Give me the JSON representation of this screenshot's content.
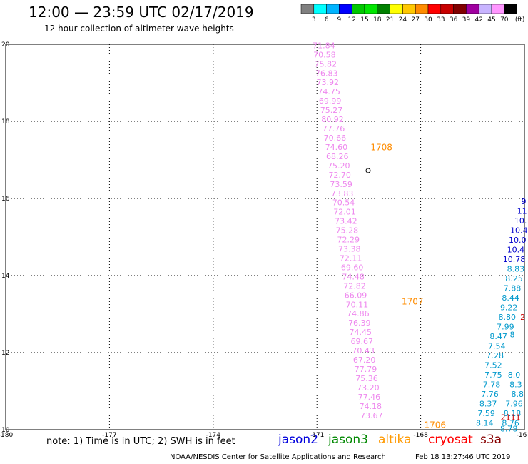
{
  "header": {
    "title": "12:00 — 23:59 UTC 02/17/2019",
    "subtitle": "12 hour collection of altimeter wave heights"
  },
  "legend": {
    "unit": "(ft)",
    "bins": [
      {
        "label": "3",
        "color": "#808080"
      },
      {
        "label": "6",
        "color": "#00ffff"
      },
      {
        "label": "9",
        "color": "#00b4ff"
      },
      {
        "label": "12",
        "color": "#0000ff"
      },
      {
        "label": "15",
        "color": "#00c800"
      },
      {
        "label": "18",
        "color": "#00e600"
      },
      {
        "label": "21",
        "color": "#008000"
      },
      {
        "label": "24",
        "color": "#ffff00"
      },
      {
        "label": "27",
        "color": "#ffc800"
      },
      {
        "label": "30",
        "color": "#ff8c00"
      },
      {
        "label": "33",
        "color": "#ff0000"
      },
      {
        "label": "36",
        "color": "#c80000"
      },
      {
        "label": "39",
        "color": "#800000"
      },
      {
        "label": "42",
        "color": "#a000a0"
      },
      {
        "label": "45",
        "color": "#c8b4ff"
      },
      {
        "label": "70",
        "color": "#ff96ff"
      },
      {
        "label": "",
        "color": "#000000"
      }
    ]
  },
  "map": {
    "lon_range": [
      -180,
      -165
    ],
    "lat_range": [
      10,
      20
    ],
    "lon_ticks": [
      "-180",
      "-177",
      "-174",
      "-171",
      "-168",
      "-16"
    ],
    "lat_ticks": [
      "20",
      "18",
      "16",
      "14",
      "12",
      "10"
    ]
  },
  "tracks": [
    {
      "satellite": "altika",
      "color": "#ee88ee",
      "points": [
        {
          "lon": -170.8,
          "lat": 19.9,
          "label": "71.84"
        },
        {
          "lon": -170.78,
          "lat": 19.66,
          "label": "70.58"
        },
        {
          "lon": -170.75,
          "lat": 19.42,
          "label": "75.82"
        },
        {
          "lon": -170.72,
          "lat": 19.18,
          "label": "76.83"
        },
        {
          "lon": -170.69,
          "lat": 18.94,
          "label": "73.92"
        },
        {
          "lon": -170.65,
          "lat": 18.7,
          "label": "74.75"
        },
        {
          "lon": -170.62,
          "lat": 18.46,
          "label": "69.99"
        },
        {
          "lon": -170.58,
          "lat": 18.22,
          "label": "75.27"
        },
        {
          "lon": -170.55,
          "lat": 17.98,
          "label": "80.92"
        },
        {
          "lon": -170.52,
          "lat": 17.74,
          "label": "77.76"
        },
        {
          "lon": -170.48,
          "lat": 17.5,
          "label": "70.66"
        },
        {
          "lon": -170.44,
          "lat": 17.26,
          "label": "74.60"
        },
        {
          "lon": -170.41,
          "lat": 17.02,
          "label": "68.26"
        },
        {
          "lon": -170.37,
          "lat": 16.78,
          "label": "75.20"
        },
        {
          "lon": -170.34,
          "lat": 16.54,
          "label": "72.70"
        },
        {
          "lon": -170.3,
          "lat": 16.3,
          "label": "73.59"
        },
        {
          "lon": -170.27,
          "lat": 16.06,
          "label": "73.83"
        },
        {
          "lon": -170.23,
          "lat": 15.82,
          "label": "70.54"
        },
        {
          "lon": -170.2,
          "lat": 15.58,
          "label": "72.01"
        },
        {
          "lon": -170.16,
          "lat": 15.34,
          "label": "73.42"
        },
        {
          "lon": -170.13,
          "lat": 15.1,
          "label": "75.28"
        },
        {
          "lon": -170.09,
          "lat": 14.86,
          "label": "72.29"
        },
        {
          "lon": -170.06,
          "lat": 14.62,
          "label": "73.38"
        },
        {
          "lon": -170.02,
          "lat": 14.38,
          "label": "72.11"
        },
        {
          "lon": -169.98,
          "lat": 14.14,
          "label": "69.60"
        },
        {
          "lon": -169.95,
          "lat": 13.9,
          "label": "74.48"
        },
        {
          "lon": -169.91,
          "lat": 13.66,
          "label": "72.82"
        },
        {
          "lon": -169.88,
          "lat": 13.42,
          "label": "66.09"
        },
        {
          "lon": -169.84,
          "lat": 13.18,
          "label": "70.11"
        },
        {
          "lon": -169.81,
          "lat": 12.94,
          "label": "74.86"
        },
        {
          "lon": -169.77,
          "lat": 12.7,
          "label": "76.39"
        },
        {
          "lon": -169.74,
          "lat": 12.46,
          "label": "74.45"
        },
        {
          "lon": -169.7,
          "lat": 12.22,
          "label": "69.67"
        },
        {
          "lon": -169.66,
          "lat": 11.98,
          "label": "70.43"
        },
        {
          "lon": -169.63,
          "lat": 11.74,
          "label": "67.20"
        },
        {
          "lon": -169.59,
          "lat": 11.5,
          "label": "77.79"
        },
        {
          "lon": -169.56,
          "lat": 11.26,
          "label": "75.36"
        },
        {
          "lon": -169.52,
          "lat": 11.02,
          "label": "73.20"
        },
        {
          "lon": -169.49,
          "lat": 10.78,
          "label": "77.46"
        },
        {
          "lon": -169.45,
          "lat": 10.54,
          "label": "74.18"
        },
        {
          "lon": -169.42,
          "lat": 10.3,
          "label": "73.67"
        }
      ]
    },
    {
      "satellite": "jason2",
      "color": "#0000cc",
      "points": [
        {
          "lon": -165.02,
          "lat": 15.85,
          "label": "9"
        },
        {
          "lon": -165.07,
          "lat": 15.6,
          "label": "11"
        },
        {
          "lon": -165.11,
          "lat": 15.35,
          "label": "10."
        },
        {
          "lon": -165.16,
          "lat": 15.1,
          "label": "10.4"
        },
        {
          "lon": -165.2,
          "lat": 14.85,
          "label": "10.0"
        },
        {
          "lon": -165.25,
          "lat": 14.6,
          "label": "10.4"
        },
        {
          "lon": -165.3,
          "lat": 14.35,
          "label": "10.78"
        }
      ]
    },
    {
      "satellite": "jason3",
      "color": "#0099cc",
      "points": [
        {
          "lon": -165.25,
          "lat": 14.1,
          "label": "8.83"
        },
        {
          "lon": -165.3,
          "lat": 13.85,
          "label": "8.25"
        },
        {
          "lon": -165.35,
          "lat": 13.6,
          "label": "7.88"
        },
        {
          "lon": -165.4,
          "lat": 13.35,
          "label": "8.44"
        },
        {
          "lon": -165.45,
          "lat": 13.1,
          "label": "9.22"
        },
        {
          "lon": -165.5,
          "lat": 12.85,
          "label": "8.80"
        },
        {
          "lon": -165.55,
          "lat": 12.6,
          "label": "7.99"
        },
        {
          "lon": -165.75,
          "lat": 12.35,
          "label": "8.47"
        },
        {
          "lon": -165.8,
          "lat": 12.1,
          "label": "7.54"
        },
        {
          "lon": -165.85,
          "lat": 11.85,
          "label": "7.28"
        },
        {
          "lon": -165.9,
          "lat": 11.6,
          "label": "7.52"
        },
        {
          "lon": -165.9,
          "lat": 11.35,
          "label": "7.75"
        },
        {
          "lon": -165.95,
          "lat": 11.1,
          "label": "7.78"
        },
        {
          "lon": -166.0,
          "lat": 10.85,
          "label": "7.76"
        },
        {
          "lon": -166.05,
          "lat": 10.6,
          "label": "8.37"
        },
        {
          "lon": -166.1,
          "lat": 10.35,
          "label": "7.59"
        },
        {
          "lon": -166.15,
          "lat": 10.1,
          "label": "8.14"
        },
        {
          "lon": -165.35,
          "lat": 12.4,
          "label": "8"
        },
        {
          "lon": -165.3,
          "lat": 11.35,
          "label": "8.0"
        },
        {
          "lon": -165.25,
          "lat": 11.1,
          "label": "8.3"
        },
        {
          "lon": -165.2,
          "lat": 10.85,
          "label": "8.8"
        },
        {
          "lon": -165.3,
          "lat": 10.6,
          "label": "7.96"
        },
        {
          "lon": -165.35,
          "lat": 10.35,
          "label": "8.18"
        },
        {
          "lon": -165.4,
          "lat": 10.1,
          "label": "8.76"
        },
        {
          "lon": -165.45,
          "lat": 9.95,
          "label": "8.78"
        }
      ]
    },
    {
      "satellite": "cryosat",
      "color": "#cc0000",
      "points": [
        {
          "lon": -165.05,
          "lat": 12.85,
          "label": "2"
        },
        {
          "lon": -165.4,
          "lat": 10.25,
          "label": "2111"
        }
      ]
    }
  ],
  "pass_times": [
    {
      "label": "1708",
      "lon": -169.45,
      "lat": 17.25,
      "color": "#ff8c00"
    },
    {
      "label": "1707",
      "lon": -168.55,
      "lat": 13.25,
      "color": "#ff8c00"
    },
    {
      "label": "1706",
      "lon": -167.9,
      "lat": 10.05,
      "color": "#ff8c00"
    }
  ],
  "footer": {
    "note": "note:  1) Time is in UTC;  2) SWH is in feet",
    "satellites": [
      {
        "name": "jason2",
        "color": "#0000dd"
      },
      {
        "name": "jason3",
        "color": "#008800"
      },
      {
        "name": "altika",
        "color": "#ff9900"
      },
      {
        "name": "cryosat",
        "color": "#ff0000"
      },
      {
        "name": "s3a",
        "color": "#880000"
      }
    ],
    "credit": "NOAA/NESDIS Center for Satellite Applications and Research",
    "timestamp": "Feb 18 13:27:46 UTC 2019"
  }
}
